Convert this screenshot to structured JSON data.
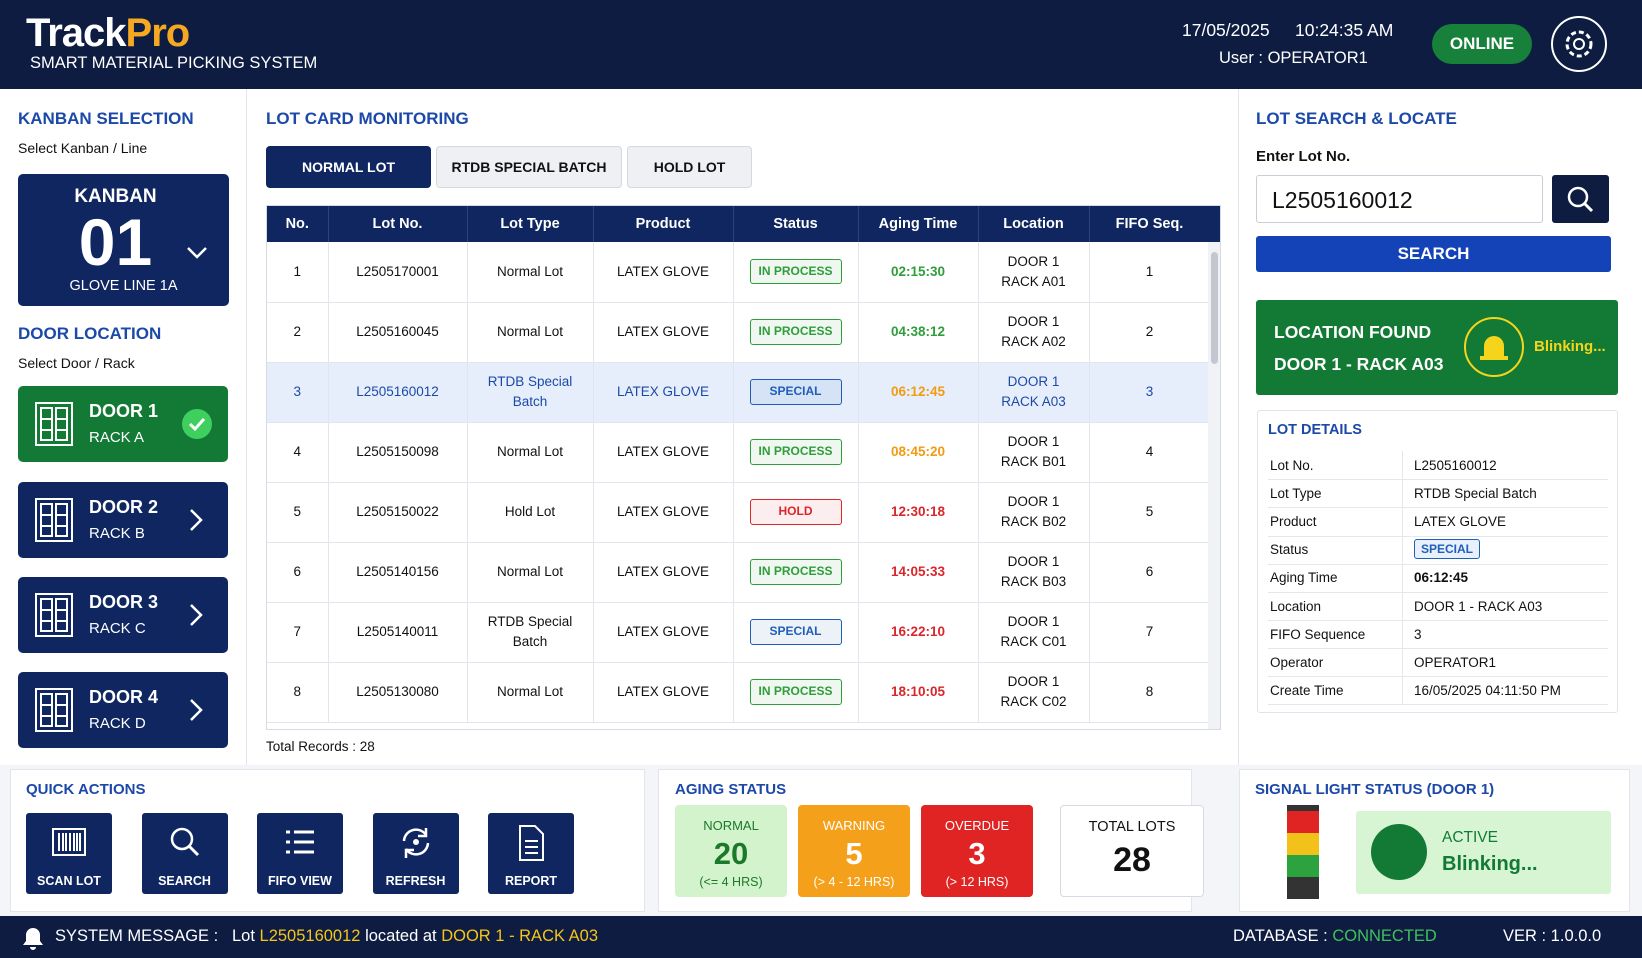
{
  "header": {
    "logo_track": "Track",
    "logo_pro": "Pro",
    "subtitle": "SMART MATERIAL PICKING SYSTEM",
    "date": "17/05/2025",
    "time": "10:24:35 AM",
    "user": "User : OPERATOR1",
    "status": "ONLINE"
  },
  "kanban": {
    "title": "KANBAN SELECTION",
    "hint": "Select Kanban / Line",
    "card_label": "KANBAN",
    "number": "01",
    "line": "GLOVE LINE 1A"
  },
  "doors": {
    "title": "DOOR LOCATION",
    "hint": "Select Door / Rack",
    "items": [
      {
        "door": "DOOR 1",
        "rack": "RACK A",
        "selected": true
      },
      {
        "door": "DOOR 2",
        "rack": "RACK B",
        "selected": false
      },
      {
        "door": "DOOR 3",
        "rack": "RACK C",
        "selected": false
      },
      {
        "door": "DOOR 4",
        "rack": "RACK D",
        "selected": false
      }
    ]
  },
  "monitoring": {
    "title": "LOT CARD MONITORING",
    "tabs": [
      {
        "label": "NORMAL LOT",
        "active": true
      },
      {
        "label": "RTDB SPECIAL BATCH",
        "active": false
      },
      {
        "label": "HOLD LOT",
        "active": false
      }
    ],
    "columns": [
      "No.",
      "Lot No.",
      "Lot Type",
      "Product",
      "Status",
      "Aging Time",
      "Location",
      "FIFO Seq."
    ],
    "rows": [
      {
        "no": 1,
        "lot_no": "L2505170001",
        "lot_type": "Normal Lot",
        "product": "LATEX GLOVE",
        "status": "IN PROCESS",
        "status_color": "#2e9e3a",
        "aging": "02:15:30",
        "aging_color": "#2e9e3a",
        "door": "DOOR 1",
        "rack": "RACK A01",
        "fifo": 1,
        "highlight": false
      },
      {
        "no": 2,
        "lot_no": "L2505160045",
        "lot_type": "Normal Lot",
        "product": "LATEX GLOVE",
        "status": "IN PROCESS",
        "status_color": "#2e9e3a",
        "aging": "04:38:12",
        "aging_color": "#2e9e3a",
        "door": "DOOR 1",
        "rack": "RACK A02",
        "fifo": 2,
        "highlight": false
      },
      {
        "no": 3,
        "lot_no": "L2505160012",
        "lot_type": "RTDB Special Batch",
        "product": "LATEX GLOVE",
        "status": "SPECIAL",
        "status_color": "#1f5fb8",
        "aging": "06:12:45",
        "aging_color": "#f29a10",
        "door": "DOOR 1",
        "rack": "RACK A03",
        "fifo": 3,
        "highlight": true
      },
      {
        "no": 4,
        "lot_no": "L2505150098",
        "lot_type": "Normal Lot",
        "product": "LATEX GLOVE",
        "status": "IN PROCESS",
        "status_color": "#2e9e3a",
        "aging": "08:45:20",
        "aging_color": "#f29a10",
        "door": "DOOR 1",
        "rack": "RACK B01",
        "fifo": 4,
        "highlight": false
      },
      {
        "no": 5,
        "lot_no": "L2505150022",
        "lot_type": "Hold Lot",
        "product": "LATEX GLOVE",
        "status": "HOLD",
        "status_color": "#d9262b",
        "aging": "12:30:18",
        "aging_color": "#d9262b",
        "door": "DOOR 1",
        "rack": "RACK B02",
        "fifo": 5,
        "highlight": false
      },
      {
        "no": 6,
        "lot_no": "L2505140156",
        "lot_type": "Normal Lot",
        "product": "LATEX GLOVE",
        "status": "IN PROCESS",
        "status_color": "#2e9e3a",
        "aging": "14:05:33",
        "aging_color": "#d9262b",
        "door": "DOOR 1",
        "rack": "RACK B03",
        "fifo": 6,
        "highlight": false
      },
      {
        "no": 7,
        "lot_no": "L2505140011",
        "lot_type": "RTDB Special Batch",
        "product": "LATEX GLOVE",
        "status": "SPECIAL",
        "status_color": "#1f5fb8",
        "aging": "16:22:10",
        "aging_color": "#d9262b",
        "door": "DOOR 1",
        "rack": "RACK C01",
        "fifo": 7,
        "highlight": false
      },
      {
        "no": 8,
        "lot_no": "L2505130080",
        "lot_type": "Normal Lot",
        "product": "LATEX GLOVE",
        "status": "IN PROCESS",
        "status_color": "#2e9e3a",
        "aging": "18:10:05",
        "aging_color": "#d9262b",
        "door": "DOOR 1",
        "rack": "RACK C02",
        "fifo": 8,
        "highlight": false
      }
    ],
    "total": "Total Records : 28"
  },
  "search": {
    "title": "LOT SEARCH & LOCATE",
    "label": "Enter Lot No.",
    "input": "L2505160012",
    "button": "SEARCH",
    "found_title": "LOCATION FOUND",
    "found_location": "DOOR 1 - RACK A03",
    "found_signal": "Blinking..."
  },
  "lot_details": {
    "title": "LOT DETAILS",
    "rows": [
      {
        "label": "Lot No.",
        "value": "L2505160012",
        "style": "plain"
      },
      {
        "label": "Lot Type",
        "value": "RTDB Special Batch",
        "style": "plain"
      },
      {
        "label": "Product",
        "value": "LATEX GLOVE",
        "style": "plain"
      },
      {
        "label": "Status",
        "value": "SPECIAL",
        "style": "badge"
      },
      {
        "label": "Aging Time",
        "value": "06:12:45",
        "style": "bold"
      },
      {
        "label": "Location",
        "value": "DOOR 1 - RACK A03",
        "style": "plain"
      },
      {
        "label": "FIFO Sequence",
        "value": "3",
        "style": "plain"
      },
      {
        "label": "Operator",
        "value": "OPERATOR1",
        "style": "plain"
      },
      {
        "label": "Create Time",
        "value": "16/05/2025 04:11:50 PM",
        "style": "plain"
      }
    ]
  },
  "quick_actions": {
    "title": "QUICK ACTIONS",
    "buttons": [
      "SCAN LOT",
      "SEARCH",
      "FIFO VIEW",
      "REFRESH",
      "REPORT"
    ]
  },
  "aging_status": {
    "title": "AGING STATUS",
    "cards": [
      {
        "label": "NORMAL",
        "value": 20,
        "range": "(<= 4 HRS)",
        "color": "#d3f3cc",
        "text_color": "#1b7a2a"
      },
      {
        "label": "WARNING",
        "value": 5,
        "range": "(> 4 - 12 HRS)",
        "color": "#f5a01a",
        "text_color": "#ffffff"
      },
      {
        "label": "OVERDUE",
        "value": 3,
        "range": "(> 12 HRS)",
        "color": "#e02323",
        "text_color": "#ffffff"
      }
    ],
    "total_label": "TOTAL LOTS",
    "total": 28
  },
  "signal": {
    "title": "SIGNAL LIGHT STATUS (DOOR 1)",
    "state": "ACTIVE",
    "mode": "Blinking..."
  },
  "footer": {
    "label": "SYSTEM MESSAGE :",
    "msg_a": "Lot",
    "lot": "L2505160012",
    "msg_b": "located at",
    "location": "DOOR 1 - RACK A03",
    "db_label": "DATABASE :",
    "db_status": "CONNECTED",
    "version": "VER : 1.0.0.0"
  }
}
